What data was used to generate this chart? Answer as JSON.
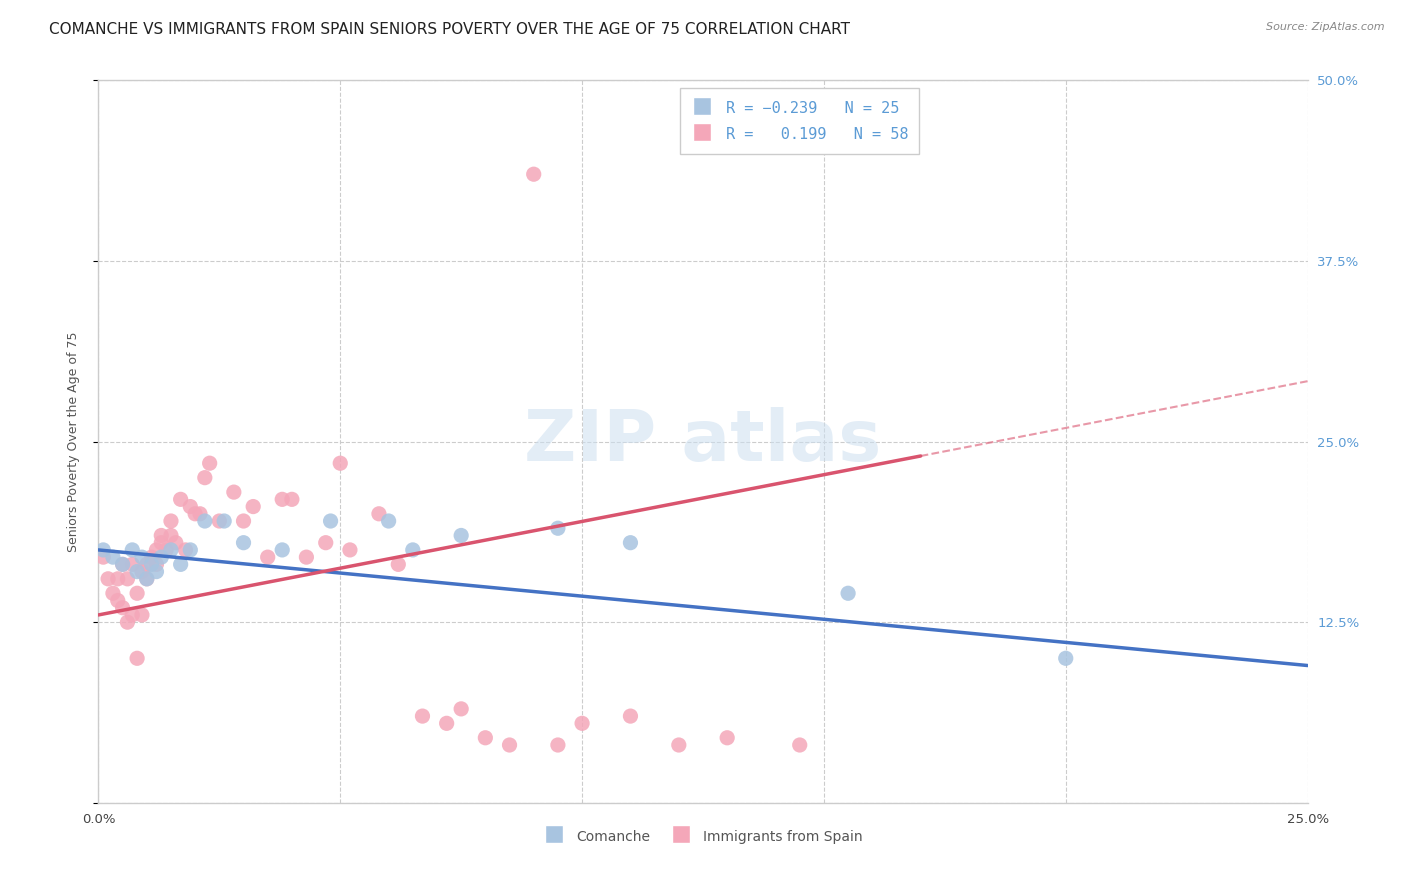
{
  "title": "COMANCHE VS IMMIGRANTS FROM SPAIN SENIORS POVERTY OVER THE AGE OF 75 CORRELATION CHART",
  "source": "Source: ZipAtlas.com",
  "ylabel": "Seniors Poverty Over the Age of 75",
  "x_ticks": [
    0.0,
    0.05,
    0.1,
    0.15,
    0.2,
    0.25
  ],
  "y_ticks": [
    0.0,
    0.125,
    0.25,
    0.375,
    0.5
  ],
  "y_tick_labels": [
    "",
    "12.5%",
    "25.0%",
    "37.5%",
    "50.0%"
  ],
  "xlim": [
    0.0,
    0.25
  ],
  "ylim": [
    0.0,
    0.5
  ],
  "comanche_R": -0.239,
  "comanche_N": 25,
  "spain_R": 0.199,
  "spain_N": 58,
  "comanche_color": "#a8c4e0",
  "spain_color": "#f4a7b9",
  "comanche_line_color": "#4472c4",
  "spain_line_color": "#d9546e",
  "background_color": "#ffffff",
  "grid_color": "#cccccc",
  "title_fontsize": 11,
  "source_fontsize": 8,
  "label_fontsize": 9,
  "tick_fontsize": 9.5,
  "comanche_x": [
    0.001,
    0.003,
    0.005,
    0.007,
    0.008,
    0.009,
    0.01,
    0.011,
    0.012,
    0.013,
    0.015,
    0.017,
    0.019,
    0.022,
    0.026,
    0.03,
    0.038,
    0.048,
    0.06,
    0.065,
    0.075,
    0.095,
    0.11,
    0.155,
    0.2
  ],
  "comanche_y": [
    0.175,
    0.17,
    0.165,
    0.175,
    0.16,
    0.17,
    0.155,
    0.165,
    0.16,
    0.17,
    0.175,
    0.165,
    0.175,
    0.195,
    0.195,
    0.18,
    0.175,
    0.195,
    0.195,
    0.175,
    0.185,
    0.19,
    0.18,
    0.145,
    0.1
  ],
  "spain_x": [
    0.001,
    0.002,
    0.003,
    0.004,
    0.004,
    0.005,
    0.005,
    0.006,
    0.006,
    0.007,
    0.007,
    0.008,
    0.008,
    0.009,
    0.009,
    0.01,
    0.01,
    0.011,
    0.012,
    0.012,
    0.013,
    0.013,
    0.014,
    0.015,
    0.015,
    0.016,
    0.017,
    0.018,
    0.019,
    0.02,
    0.021,
    0.022,
    0.023,
    0.025,
    0.028,
    0.03,
    0.032,
    0.035,
    0.038,
    0.04,
    0.043,
    0.047,
    0.05,
    0.052,
    0.058,
    0.062,
    0.067,
    0.072,
    0.075,
    0.08,
    0.085,
    0.09,
    0.095,
    0.1,
    0.11,
    0.12,
    0.13,
    0.145
  ],
  "spain_y": [
    0.17,
    0.155,
    0.145,
    0.14,
    0.155,
    0.135,
    0.165,
    0.125,
    0.155,
    0.13,
    0.165,
    0.1,
    0.145,
    0.13,
    0.16,
    0.155,
    0.165,
    0.17,
    0.175,
    0.165,
    0.185,
    0.18,
    0.175,
    0.185,
    0.195,
    0.18,
    0.21,
    0.175,
    0.205,
    0.2,
    0.2,
    0.225,
    0.235,
    0.195,
    0.215,
    0.195,
    0.205,
    0.17,
    0.21,
    0.21,
    0.17,
    0.18,
    0.235,
    0.175,
    0.2,
    0.165,
    0.06,
    0.055,
    0.065,
    0.045,
    0.04,
    0.435,
    0.04,
    0.055,
    0.06,
    0.04,
    0.045,
    0.04
  ]
}
